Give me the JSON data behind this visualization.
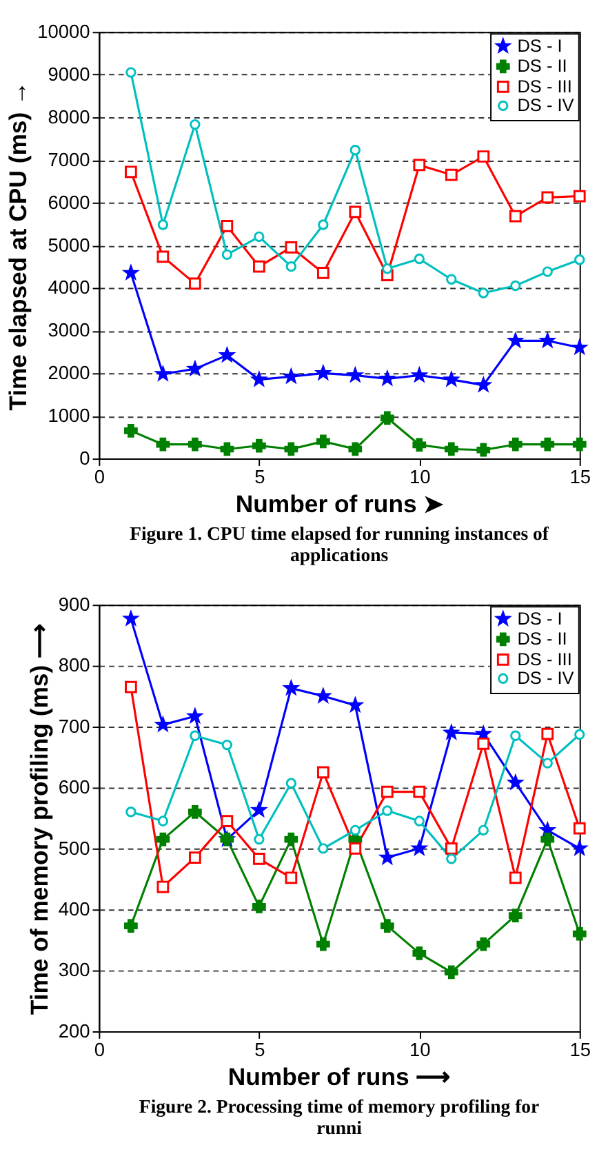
{
  "chart_data": [
    {
      "type": "line",
      "xlabel": "Number of runs ➤",
      "ylabel": "Time elapsed at CPU (ms) →",
      "x": [
        1,
        2,
        3,
        4,
        5,
        6,
        7,
        8,
        9,
        10,
        11,
        12,
        13,
        14,
        15
      ],
      "xlim": [
        0,
        15
      ],
      "xticks": [
        0,
        5,
        10,
        15
      ],
      "ylim": [
        0,
        10000
      ],
      "yticks": [
        0,
        1000,
        2000,
        3000,
        4000,
        5000,
        6000,
        7000,
        8000,
        9000,
        10000
      ],
      "grid": "y",
      "legend": "top right",
      "line_style": "solid",
      "annotations": [
        "Figure 1. CPU time elapsed for running instances of applications"
      ],
      "series": [
        {
          "name": "DS - I",
          "color": "#0000ff",
          "marker": "star",
          "values": [
            4350,
            1980,
            2100,
            2420,
            1850,
            1920,
            2000,
            1950,
            1870,
            1950,
            1850,
            1720,
            2760,
            2760,
            2600
          ]
        },
        {
          "name": "DS - II",
          "color": "#008000",
          "marker": "cross",
          "values": [
            650,
            330,
            330,
            220,
            300,
            220,
            400,
            220,
            950,
            320,
            220,
            200,
            330,
            330,
            330
          ]
        },
        {
          "name": "DS - III",
          "color": "#ff0000",
          "marker": "square",
          "values": [
            6720,
            4730,
            4100,
            5450,
            4500,
            4950,
            4350,
            5780,
            4300,
            6880,
            6650,
            7080,
            5680,
            6120,
            6150
          ]
        },
        {
          "name": "DS - IV",
          "color": "#00bfbf",
          "marker": "circle",
          "values": [
            9050,
            5480,
            7830,
            4780,
            5200,
            4500,
            5480,
            7230,
            4450,
            4680,
            4200,
            3880,
            4050,
            4380,
            4660
          ]
        }
      ]
    },
    {
      "type": "line",
      "xlabel": "Number of runs ⟶",
      "ylabel": "Time of memory profiling (ms) ⟶",
      "x": [
        1,
        2,
        3,
        4,
        5,
        6,
        7,
        8,
        9,
        10,
        11,
        12,
        13,
        14,
        15
      ],
      "xlim": [
        0,
        15
      ],
      "xticks": [
        0,
        5,
        10,
        15
      ],
      "ylim": [
        200,
        900
      ],
      "yticks": [
        200,
        300,
        400,
        500,
        600,
        700,
        800,
        900
      ],
      "grid": "y",
      "legend": "top right",
      "line_style": "solid",
      "annotations": [
        "Figure 2. Processing time of memory profiling for runni"
      ],
      "series": [
        {
          "name": "DS - I",
          "color": "#0000ff",
          "marker": "star",
          "values": [
            877,
            703,
            717,
            515,
            563,
            763,
            750,
            735,
            485,
            500,
            690,
            688,
            608,
            530,
            500
          ]
        },
        {
          "name": "DS - II",
          "color": "#008000",
          "marker": "cross",
          "values": [
            373,
            515,
            560,
            515,
            405,
            515,
            343,
            515,
            373,
            328,
            297,
            343,
            390,
            515,
            360
          ]
        },
        {
          "name": "DS - III",
          "color": "#ff0000",
          "marker": "square",
          "values": [
            765,
            437,
            485,
            545,
            483,
            452,
            625,
            500,
            593,
            593,
            500,
            672,
            452,
            688,
            533
          ]
        },
        {
          "name": "DS - IV",
          "color": "#00bfbf",
          "marker": "circle",
          "values": [
            560,
            545,
            685,
            670,
            515,
            607,
            500,
            530,
            562,
            545,
            483,
            530,
            685,
            640,
            687
          ]
        }
      ]
    }
  ]
}
